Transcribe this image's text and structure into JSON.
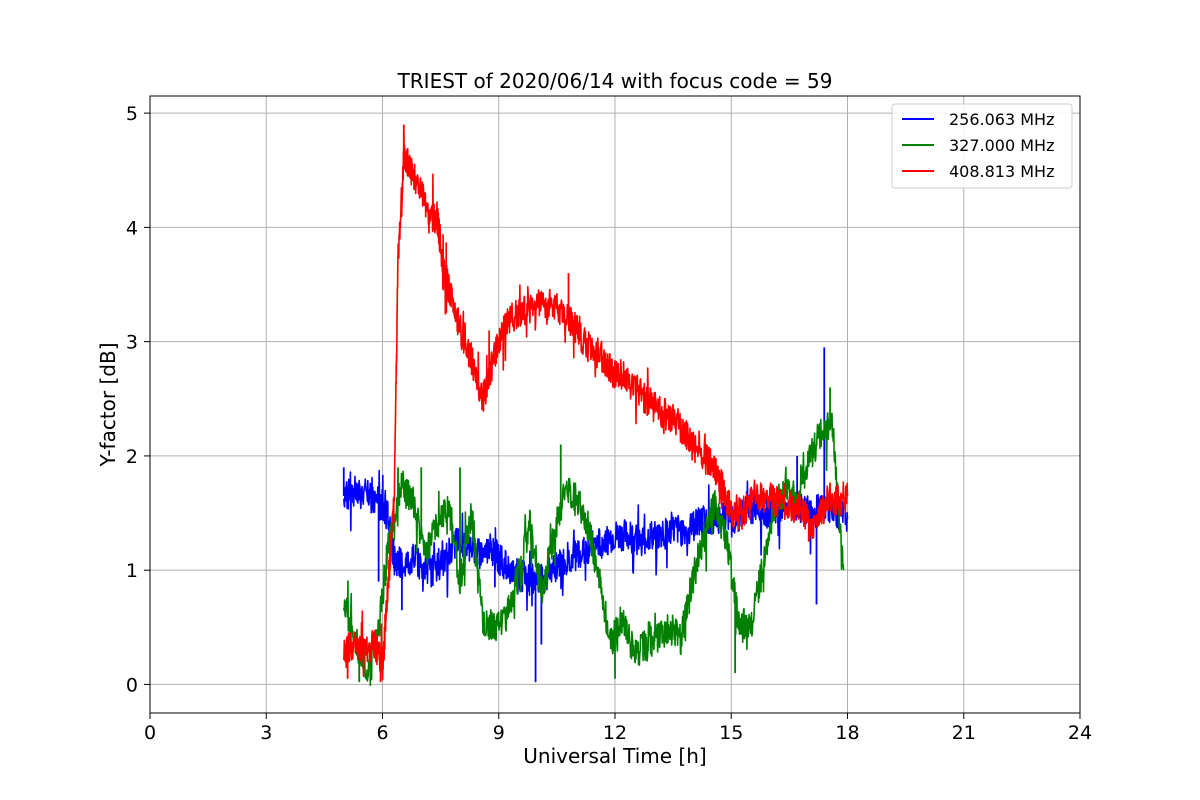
{
  "chart_data": {
    "type": "line",
    "title": "TRIEST of 2020/06/14 with focus code = 59",
    "xlabel": "Universal Time [h]",
    "ylabel": "Y-factor [dB]",
    "xlim": [
      0,
      24
    ],
    "ylim": [
      -0.25,
      5.15
    ],
    "xticks": [
      0,
      3,
      6,
      9,
      12,
      15,
      18,
      21,
      24
    ],
    "yticks": [
      0,
      1,
      2,
      3,
      4,
      5
    ],
    "grid": true,
    "legend_position": "top-right",
    "series": [
      {
        "name": "256.063 MHz",
        "color": "#0000ff",
        "x": [
          5.0,
          5.3,
          5.6,
          5.9,
          6.1,
          6.3,
          6.5,
          6.8,
          7.0,
          7.3,
          7.6,
          7.9,
          8.2,
          8.5,
          8.8,
          9.0,
          9.3,
          9.6,
          9.9,
          10.2,
          10.5,
          10.8,
          11.1,
          11.4,
          11.7,
          12.0,
          12.3,
          12.6,
          12.9,
          13.2,
          13.5,
          13.8,
          14.1,
          14.4,
          14.7,
          15.0,
          15.3,
          15.6,
          15.9,
          16.2,
          16.5,
          16.8,
          17.1,
          17.4,
          17.7,
          18.0
        ],
        "y": [
          1.65,
          1.7,
          1.65,
          1.6,
          1.55,
          1.1,
          1.05,
          1.1,
          1.05,
          1.0,
          1.1,
          1.25,
          1.2,
          1.15,
          1.2,
          1.1,
          1.0,
          0.95,
          0.9,
          0.95,
          1.05,
          1.1,
          1.15,
          1.2,
          1.25,
          1.3,
          1.3,
          1.25,
          1.3,
          1.3,
          1.35,
          1.35,
          1.4,
          1.45,
          1.45,
          1.45,
          1.5,
          1.55,
          1.5,
          1.55,
          1.6,
          1.55,
          1.5,
          1.55,
          1.5,
          1.45
        ],
        "spikes": [
          [
            5.0,
            1.9
          ],
          [
            5.9,
            0.9
          ],
          [
            6.5,
            0.65
          ],
          [
            8.0,
            0.95
          ],
          [
            8.9,
            0.85
          ],
          [
            9.95,
            0.02
          ],
          [
            10.1,
            0.35
          ],
          [
            17.4,
            2.95
          ],
          [
            17.2,
            0.7
          ],
          [
            16.7,
            2.0
          ],
          [
            16.1,
            1.7
          ]
        ]
      },
      {
        "name": "327.000 MHz",
        "color": "#008000",
        "x": [
          5.0,
          5.3,
          5.6,
          5.9,
          6.2,
          6.5,
          6.8,
          7.1,
          7.4,
          7.7,
          8.0,
          8.3,
          8.6,
          8.9,
          9.2,
          9.5,
          9.8,
          10.1,
          10.4,
          10.7,
          11.0,
          11.3,
          11.6,
          11.9,
          12.2,
          12.5,
          12.8,
          13.1,
          13.4,
          13.7,
          14.0,
          14.3,
          14.6,
          14.9,
          15.2,
          15.5,
          15.8,
          16.1,
          16.4,
          16.7,
          17.0,
          17.3,
          17.6,
          17.9
        ],
        "y": [
          0.7,
          0.35,
          0.15,
          0.5,
          1.35,
          1.75,
          1.6,
          1.1,
          1.4,
          1.6,
          0.9,
          1.5,
          0.55,
          0.5,
          0.6,
          0.95,
          1.4,
          0.8,
          1.25,
          1.7,
          1.65,
          1.4,
          0.9,
          0.35,
          0.6,
          0.25,
          0.35,
          0.4,
          0.5,
          0.4,
          0.9,
          1.3,
          1.6,
          1.2,
          0.55,
          0.5,
          1.0,
          1.55,
          1.7,
          1.6,
          1.95,
          2.2,
          2.3,
          1.0
        ],
        "spikes": [
          [
            5.4,
            0.02
          ],
          [
            7.0,
            1.9
          ],
          [
            8.0,
            1.9
          ],
          [
            10.6,
            2.1
          ],
          [
            12.0,
            0.05
          ],
          [
            15.1,
            0.1
          ],
          [
            17.55,
            2.6
          ],
          [
            6.4,
            1.9
          ]
        ]
      },
      {
        "name": "408.813 MHz",
        "color": "#ff0000",
        "x": [
          5.0,
          5.2,
          5.5,
          5.8,
          6.0,
          6.15,
          6.3,
          6.4,
          6.55,
          6.75,
          7.0,
          7.2,
          7.4,
          7.6,
          7.8,
          8.0,
          8.3,
          8.6,
          8.75,
          9.0,
          9.3,
          9.6,
          9.9,
          10.2,
          10.5,
          10.8,
          11.0,
          11.3,
          11.6,
          11.9,
          12.2,
          12.5,
          12.8,
          13.1,
          13.4,
          13.7,
          14.0,
          14.3,
          14.6,
          14.8,
          15.0,
          15.3,
          15.6,
          15.9,
          16.2,
          16.5,
          16.8,
          17.1,
          17.4,
          17.7,
          18.0
        ],
        "y": [
          0.25,
          0.35,
          0.3,
          0.35,
          0.15,
          0.9,
          1.6,
          3.7,
          4.6,
          4.5,
          4.3,
          4.05,
          4.1,
          3.6,
          3.35,
          3.1,
          2.85,
          2.5,
          2.7,
          3.0,
          3.2,
          3.25,
          3.3,
          3.35,
          3.3,
          3.2,
          3.1,
          2.95,
          2.9,
          2.75,
          2.7,
          2.6,
          2.5,
          2.4,
          2.35,
          2.25,
          2.1,
          2.0,
          1.85,
          1.7,
          1.5,
          1.5,
          1.65,
          1.6,
          1.6,
          1.55,
          1.55,
          1.35,
          1.55,
          1.6,
          1.65
        ],
        "spikes": [
          [
            6.55,
            4.9
          ],
          [
            10.8,
            3.6
          ],
          [
            5.1,
            0.05
          ],
          [
            5.95,
            0.02
          ],
          [
            15.2,
            1.35
          ],
          [
            17.0,
            1.25
          ]
        ]
      }
    ]
  }
}
